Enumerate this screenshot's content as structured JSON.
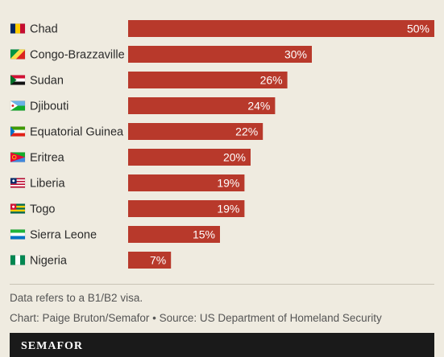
{
  "chart_data": {
    "type": "bar",
    "orientation": "horizontal",
    "categories": [
      "Chad",
      "Congo-Brazzaville",
      "Sudan",
      "Djibouti",
      "Equatorial Guinea",
      "Eritrea",
      "Liberia",
      "Togo",
      "Sierra Leone",
      "Nigeria"
    ],
    "values": [
      50,
      30,
      26,
      24,
      22,
      20,
      19,
      19,
      15,
      7
    ],
    "value_labels": [
      "50%",
      "30%",
      "26%",
      "24%",
      "22%",
      "20%",
      "19%",
      "19%",
      "15%",
      "7%"
    ],
    "unit": "%",
    "xlim": [
      0,
      50
    ],
    "bar_color": "#b8392b",
    "value_label_color": "#ffffff",
    "flags": [
      "flag-chad-icon",
      "flag-congo-brazzaville-icon",
      "flag-sudan-icon",
      "flag-djibouti-icon",
      "flag-equatorial-guinea-icon",
      "flag-eritrea-icon",
      "flag-liberia-icon",
      "flag-togo-icon",
      "flag-sierra-leone-icon",
      "flag-nigeria-icon"
    ]
  },
  "notes": {
    "visa": "Data refers to a B1/B2 visa.",
    "credit": "Chart: Paige Bruton/Semafor • Source: US Department of Homeland Security"
  },
  "footer": {
    "brand": "SEMAFOR",
    "background": "#1a1a1a"
  },
  "colors": {
    "background": "#efebe0",
    "text": "#2a2a2a",
    "muted_text": "#555555"
  }
}
